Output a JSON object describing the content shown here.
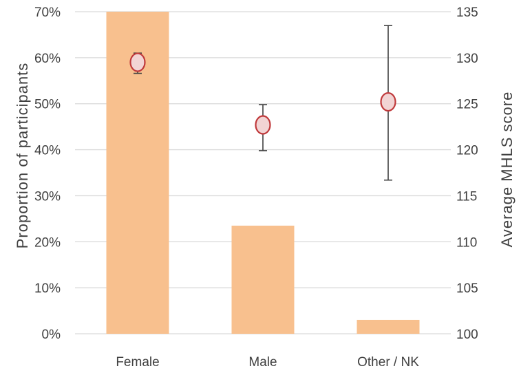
{
  "chart_data": {
    "type": "bar",
    "categories": [
      "Female",
      "Male",
      "Other / NK"
    ],
    "series": [
      {
        "type": "bar",
        "axis": "left",
        "values": [
          0.7,
          0.235,
          0.03
        ],
        "color": "#F8C08E"
      },
      {
        "type": "scatter",
        "axis": "right",
        "values": [
          129.5,
          122.7,
          125.2
        ],
        "error_low": [
          128.3,
          119.9,
          116.7
        ],
        "error_high": [
          130.5,
          124.9,
          133.5
        ],
        "marker_fill": "#F2D4D4",
        "marker_stroke": "#C0393B",
        "error_color": "#404040"
      }
    ],
    "ylabel": "Proportion of participants",
    "y2label": "Average MHLS score",
    "ylim": [
      0,
      0.7
    ],
    "y2lim": [
      100,
      135
    ],
    "yticks": [
      "0%",
      "10%",
      "20%",
      "30%",
      "40%",
      "50%",
      "60%",
      "70%"
    ],
    "y2ticks": [
      "100",
      "105",
      "110",
      "115",
      "120",
      "125",
      "130",
      "135"
    ],
    "grid": true,
    "grid_color": "#D9D9D9"
  }
}
